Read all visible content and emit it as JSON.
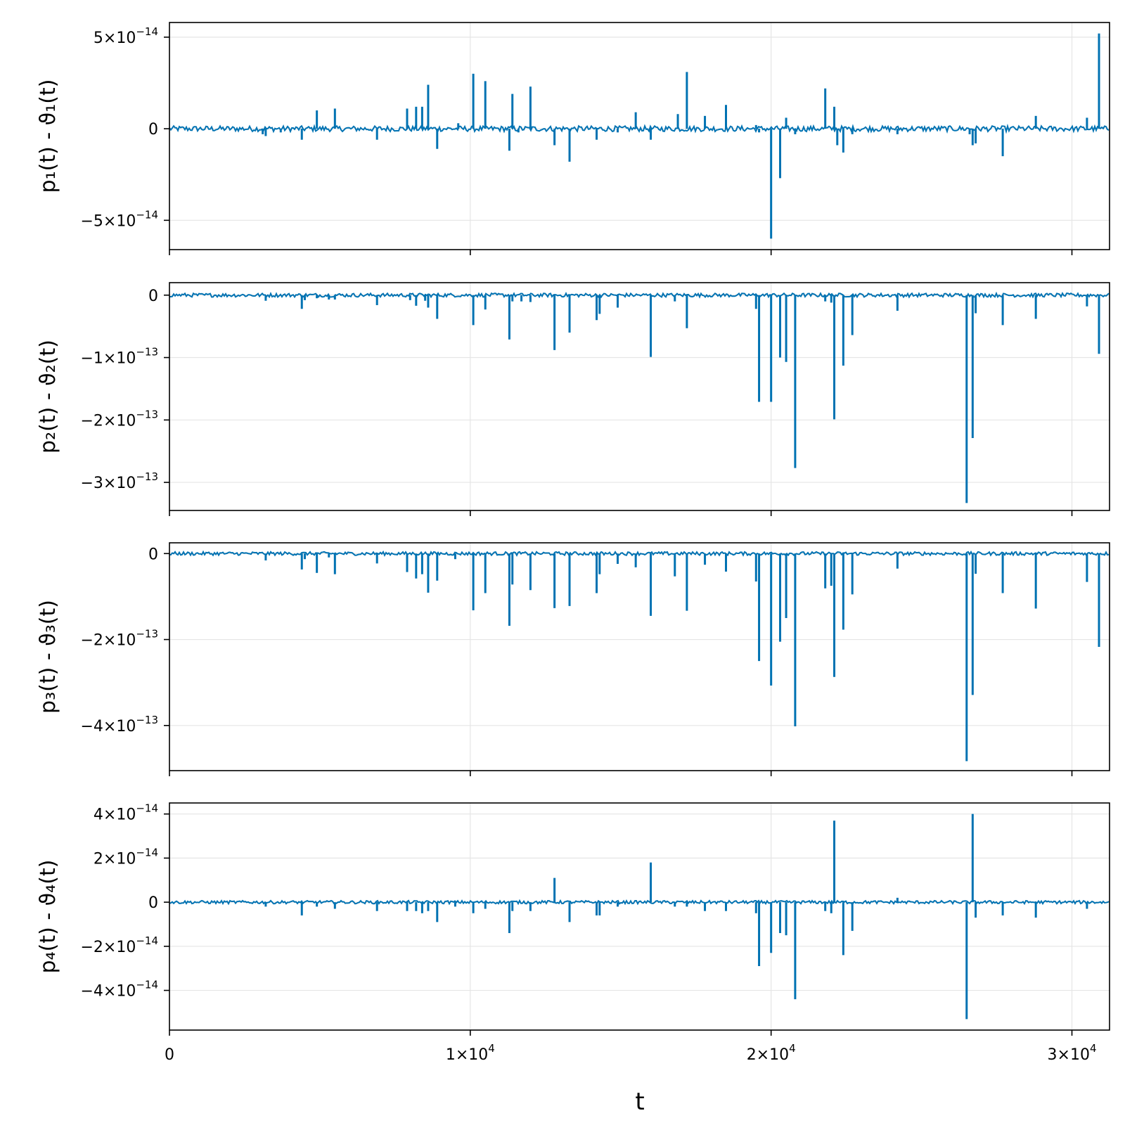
{
  "colors": {
    "series": "#0072b2",
    "grid": "#e5e5e5",
    "frame": "#000000",
    "background": "#ffffff"
  },
  "xlabel": "t",
  "x_ticks": [
    {
      "value": 0,
      "mant": "0",
      "exp": ""
    },
    {
      "value": 10000,
      "mant": "1×10",
      "exp": "4"
    },
    {
      "value": 20000,
      "mant": "2×10",
      "exp": "4"
    },
    {
      "value": 30000,
      "mant": "3×10",
      "exp": "4"
    }
  ],
  "chart_data": [
    {
      "type": "line",
      "ylabel": "p₁(t) - ϑ₁(t)",
      "xlim": [
        0,
        31250
      ],
      "ylim": [
        -6.6e-14,
        5.8e-14
      ],
      "grid": true,
      "y_ticks": [
        {
          "value": 5e-14,
          "mant": "5×10",
          "exp": "−14"
        },
        {
          "value": 0,
          "mant": "0",
          "exp": ""
        },
        {
          "value": -5e-14,
          "mant": "−5×10",
          "exp": "−14"
        }
      ],
      "baseline_noise": 1.5e-15,
      "spikes": [
        [
          3100,
          -3e-15
        ],
        [
          3200,
          -4e-15
        ],
        [
          3700,
          -2e-15
        ],
        [
          4400,
          -6e-15
        ],
        [
          4900,
          1e-14
        ],
        [
          5500,
          1.1e-14
        ],
        [
          6900,
          -6e-15
        ],
        [
          7900,
          1.1e-14
        ],
        [
          8200,
          1.2e-14
        ],
        [
          8400,
          1.2e-14
        ],
        [
          8600,
          2.4e-14
        ],
        [
          8900,
          -1.1e-14
        ],
        [
          9600,
          3e-15
        ],
        [
          10100,
          3e-14
        ],
        [
          10500,
          2.6e-14
        ],
        [
          11300,
          -1.2e-14
        ],
        [
          11400,
          1.9e-14
        ],
        [
          11600,
          -2e-15
        ],
        [
          12000,
          2.3e-14
        ],
        [
          12800,
          -9e-15
        ],
        [
          13300,
          -1.8e-14
        ],
        [
          14200,
          -6e-15
        ],
        [
          14900,
          -2e-15
        ],
        [
          15500,
          9e-15
        ],
        [
          16000,
          -6e-15
        ],
        [
          16900,
          8e-15
        ],
        [
          17200,
          3.1e-14
        ],
        [
          17800,
          7e-15
        ],
        [
          18500,
          1.3e-14
        ],
        [
          19500,
          2e-15
        ],
        [
          19600,
          -2e-15
        ],
        [
          20000,
          -6e-14
        ],
        [
          20300,
          -2.7e-14
        ],
        [
          20500,
          6e-15
        ],
        [
          20800,
          -3e-15
        ],
        [
          21800,
          2.2e-14
        ],
        [
          22100,
          1.2e-14
        ],
        [
          22200,
          -9e-15
        ],
        [
          22400,
          -1.3e-14
        ],
        [
          22700,
          -3e-15
        ],
        [
          24200,
          -3e-15
        ],
        [
          26600,
          -3e-15
        ],
        [
          26700,
          -9e-15
        ],
        [
          26800,
          -8e-15
        ],
        [
          27700,
          -1.5e-14
        ],
        [
          28800,
          7e-15
        ],
        [
          30500,
          6e-15
        ],
        [
          30900,
          5.2e-14
        ]
      ]
    },
    {
      "type": "line",
      "ylabel": "p₂(t) - ϑ₂(t)",
      "xlim": [
        0,
        31250
      ],
      "ylim": [
        -3.45e-13,
        2e-14
      ],
      "grid": true,
      "y_ticks": [
        {
          "value": 0,
          "mant": "0",
          "exp": ""
        },
        {
          "value": -1e-13,
          "mant": "−1×10",
          "exp": "−13"
        },
        {
          "value": -2e-13,
          "mant": "−2×10",
          "exp": "−13"
        },
        {
          "value": -3e-13,
          "mant": "−3×10",
          "exp": "−13"
        }
      ],
      "baseline_noise": 3e-15,
      "spikes": [
        [
          3200,
          -9e-15
        ],
        [
          4400,
          -2.2e-14
        ],
        [
          4500,
          -8e-15
        ],
        [
          4900,
          -5e-15
        ],
        [
          5300,
          -7e-15
        ],
        [
          5500,
          -7e-15
        ],
        [
          6900,
          -1.6e-14
        ],
        [
          8000,
          -8e-15
        ],
        [
          8200,
          -1.7e-14
        ],
        [
          8500,
          -9e-15
        ],
        [
          8600,
          -2e-14
        ],
        [
          8900,
          -3.8e-14
        ],
        [
          10100,
          -4.8e-14
        ],
        [
          10500,
          -2.3e-14
        ],
        [
          11300,
          -7.1e-14
        ],
        [
          11400,
          -1e-14
        ],
        [
          11700,
          -1e-14
        ],
        [
          12000,
          -1.1e-14
        ],
        [
          12800,
          -8.8e-14
        ],
        [
          13300,
          -6e-14
        ],
        [
          14200,
          -4e-14
        ],
        [
          14300,
          -3e-14
        ],
        [
          14900,
          -2e-14
        ],
        [
          16000,
          -9.9e-14
        ],
        [
          16800,
          -1e-14
        ],
        [
          17200,
          -5.3e-14
        ],
        [
          19500,
          -2.2e-14
        ],
        [
          19600,
          -1.71e-13
        ],
        [
          20000,
          -1.71e-13
        ],
        [
          20300,
          -1e-13
        ],
        [
          20500,
          -1.07e-13
        ],
        [
          20800,
          -2.77e-13
        ],
        [
          21800,
          -1e-14
        ],
        [
          22000,
          -1.2e-14
        ],
        [
          22100,
          -1.99e-13
        ],
        [
          22400,
          -1.13e-13
        ],
        [
          22700,
          -6.4e-14
        ],
        [
          24200,
          -2.5e-14
        ],
        [
          26500,
          -3.33e-13
        ],
        [
          26700,
          -2.29e-13
        ],
        [
          26800,
          -2.9e-14
        ],
        [
          27700,
          -4.8e-14
        ],
        [
          28800,
          -3.8e-14
        ],
        [
          30500,
          -1.8e-14
        ],
        [
          30900,
          -9.4e-14
        ]
      ]
    },
    {
      "type": "line",
      "ylabel": "p₃(t) - ϑ₃(t)",
      "xlim": [
        0,
        31250
      ],
      "ylim": [
        -5.05e-13,
        2.5e-14
      ],
      "grid": true,
      "y_ticks": [
        {
          "value": 0,
          "mant": "0",
          "exp": ""
        },
        {
          "value": -2e-13,
          "mant": "−2×10",
          "exp": "−13"
        },
        {
          "value": -4e-13,
          "mant": "−4×10",
          "exp": "−13"
        }
      ],
      "baseline_noise": 4e-15,
      "spikes": [
        [
          3200,
          -1.6e-14
        ],
        [
          4400,
          -3.7e-14
        ],
        [
          4500,
          -1.3e-14
        ],
        [
          4900,
          -4.5e-14
        ],
        [
          5300,
          -9e-15
        ],
        [
          5500,
          -4.8e-14
        ],
        [
          6900,
          -2.3e-14
        ],
        [
          7900,
          -4.3e-14
        ],
        [
          8200,
          -5.8e-14
        ],
        [
          8400,
          -4.8e-14
        ],
        [
          8600,
          -9.1e-14
        ],
        [
          8900,
          -6.3e-14
        ],
        [
          9500,
          -1.3e-14
        ],
        [
          10100,
          -1.32e-13
        ],
        [
          10500,
          -9.2e-14
        ],
        [
          11300,
          -1.68e-13
        ],
        [
          11400,
          -7.2e-14
        ],
        [
          12000,
          -8.5e-14
        ],
        [
          12800,
          -1.27e-13
        ],
        [
          13300,
          -1.22e-13
        ],
        [
          14200,
          -9.2e-14
        ],
        [
          14300,
          -4.8e-14
        ],
        [
          14900,
          -2.4e-14
        ],
        [
          15500,
          -3.2e-14
        ],
        [
          16000,
          -1.45e-13
        ],
        [
          16800,
          -5.3e-14
        ],
        [
          17200,
          -1.33e-13
        ],
        [
          17800,
          -2.6e-14
        ],
        [
          18500,
          -4.2e-14
        ],
        [
          19500,
          -6.5e-14
        ],
        [
          19600,
          -2.5e-13
        ],
        [
          20000,
          -3.07e-13
        ],
        [
          20300,
          -2.05e-13
        ],
        [
          20500,
          -1.5e-13
        ],
        [
          20800,
          -4.02e-13
        ],
        [
          21800,
          -8.1e-14
        ],
        [
          22000,
          -7.5e-14
        ],
        [
          22100,
          -2.87e-13
        ],
        [
          22400,
          -1.77e-13
        ],
        [
          22700,
          -9.5e-14
        ],
        [
          24200,
          -3.5e-14
        ],
        [
          26500,
          -4.83e-13
        ],
        [
          26700,
          -3.29e-13
        ],
        [
          26800,
          -4.7e-14
        ],
        [
          27700,
          -9.2e-14
        ],
        [
          28800,
          -1.28e-13
        ],
        [
          30500,
          -6.6e-14
        ],
        [
          30900,
          -2.17e-13
        ]
      ]
    },
    {
      "type": "line",
      "ylabel": "p₄(t) - ϑ₄(t)",
      "xlim": [
        0,
        31250
      ],
      "ylim": [
        -5.8e-14,
        4.5e-14
      ],
      "grid": true,
      "y_ticks": [
        {
          "value": 4e-14,
          "mant": "4×10",
          "exp": "−14"
        },
        {
          "value": 2e-14,
          "mant": "2×10",
          "exp": "−14"
        },
        {
          "value": 0,
          "mant": "0",
          "exp": ""
        },
        {
          "value": -2e-14,
          "mant": "−2×10",
          "exp": "−14"
        },
        {
          "value": -4e-14,
          "mant": "−4×10",
          "exp": "−14"
        }
      ],
      "baseline_noise": 7e-16,
      "spikes": [
        [
          3200,
          -2e-15
        ],
        [
          4400,
          -6e-15
        ],
        [
          4900,
          -2e-15
        ],
        [
          5500,
          -3e-15
        ],
        [
          6900,
          -4e-15
        ],
        [
          7900,
          -4e-15
        ],
        [
          8200,
          -4e-15
        ],
        [
          8400,
          -5e-15
        ],
        [
          8600,
          -4e-15
        ],
        [
          8900,
          -9e-15
        ],
        [
          9500,
          -2e-15
        ],
        [
          10100,
          -5e-15
        ],
        [
          10500,
          -3e-15
        ],
        [
          11300,
          -1.4e-14
        ],
        [
          11400,
          -4e-15
        ],
        [
          12000,
          -4e-15
        ],
        [
          12800,
          1.1e-14
        ],
        [
          13300,
          -9e-15
        ],
        [
          14200,
          -6e-15
        ],
        [
          14300,
          -6e-15
        ],
        [
          14900,
          -2e-15
        ],
        [
          16000,
          1.8e-14
        ],
        [
          16800,
          -2e-15
        ],
        [
          17200,
          -2e-15
        ],
        [
          17800,
          -4e-15
        ],
        [
          18500,
          -4e-15
        ],
        [
          19500,
          -5e-15
        ],
        [
          19600,
          -2.9e-14
        ],
        [
          20000,
          -2.3e-14
        ],
        [
          20300,
          -1.4e-14
        ],
        [
          20500,
          -1.5e-14
        ],
        [
          20800,
          -4.4e-14
        ],
        [
          21800,
          -4e-15
        ],
        [
          22000,
          -5e-15
        ],
        [
          22100,
          3.7e-14
        ],
        [
          22400,
          -2.4e-14
        ],
        [
          22700,
          -1.3e-14
        ],
        [
          24200,
          2e-15
        ],
        [
          26500,
          -5.3e-14
        ],
        [
          26700,
          4e-14
        ],
        [
          26800,
          -7e-15
        ],
        [
          27700,
          -6e-15
        ],
        [
          28800,
          -7e-15
        ],
        [
          30500,
          -3e-15
        ]
      ]
    }
  ]
}
